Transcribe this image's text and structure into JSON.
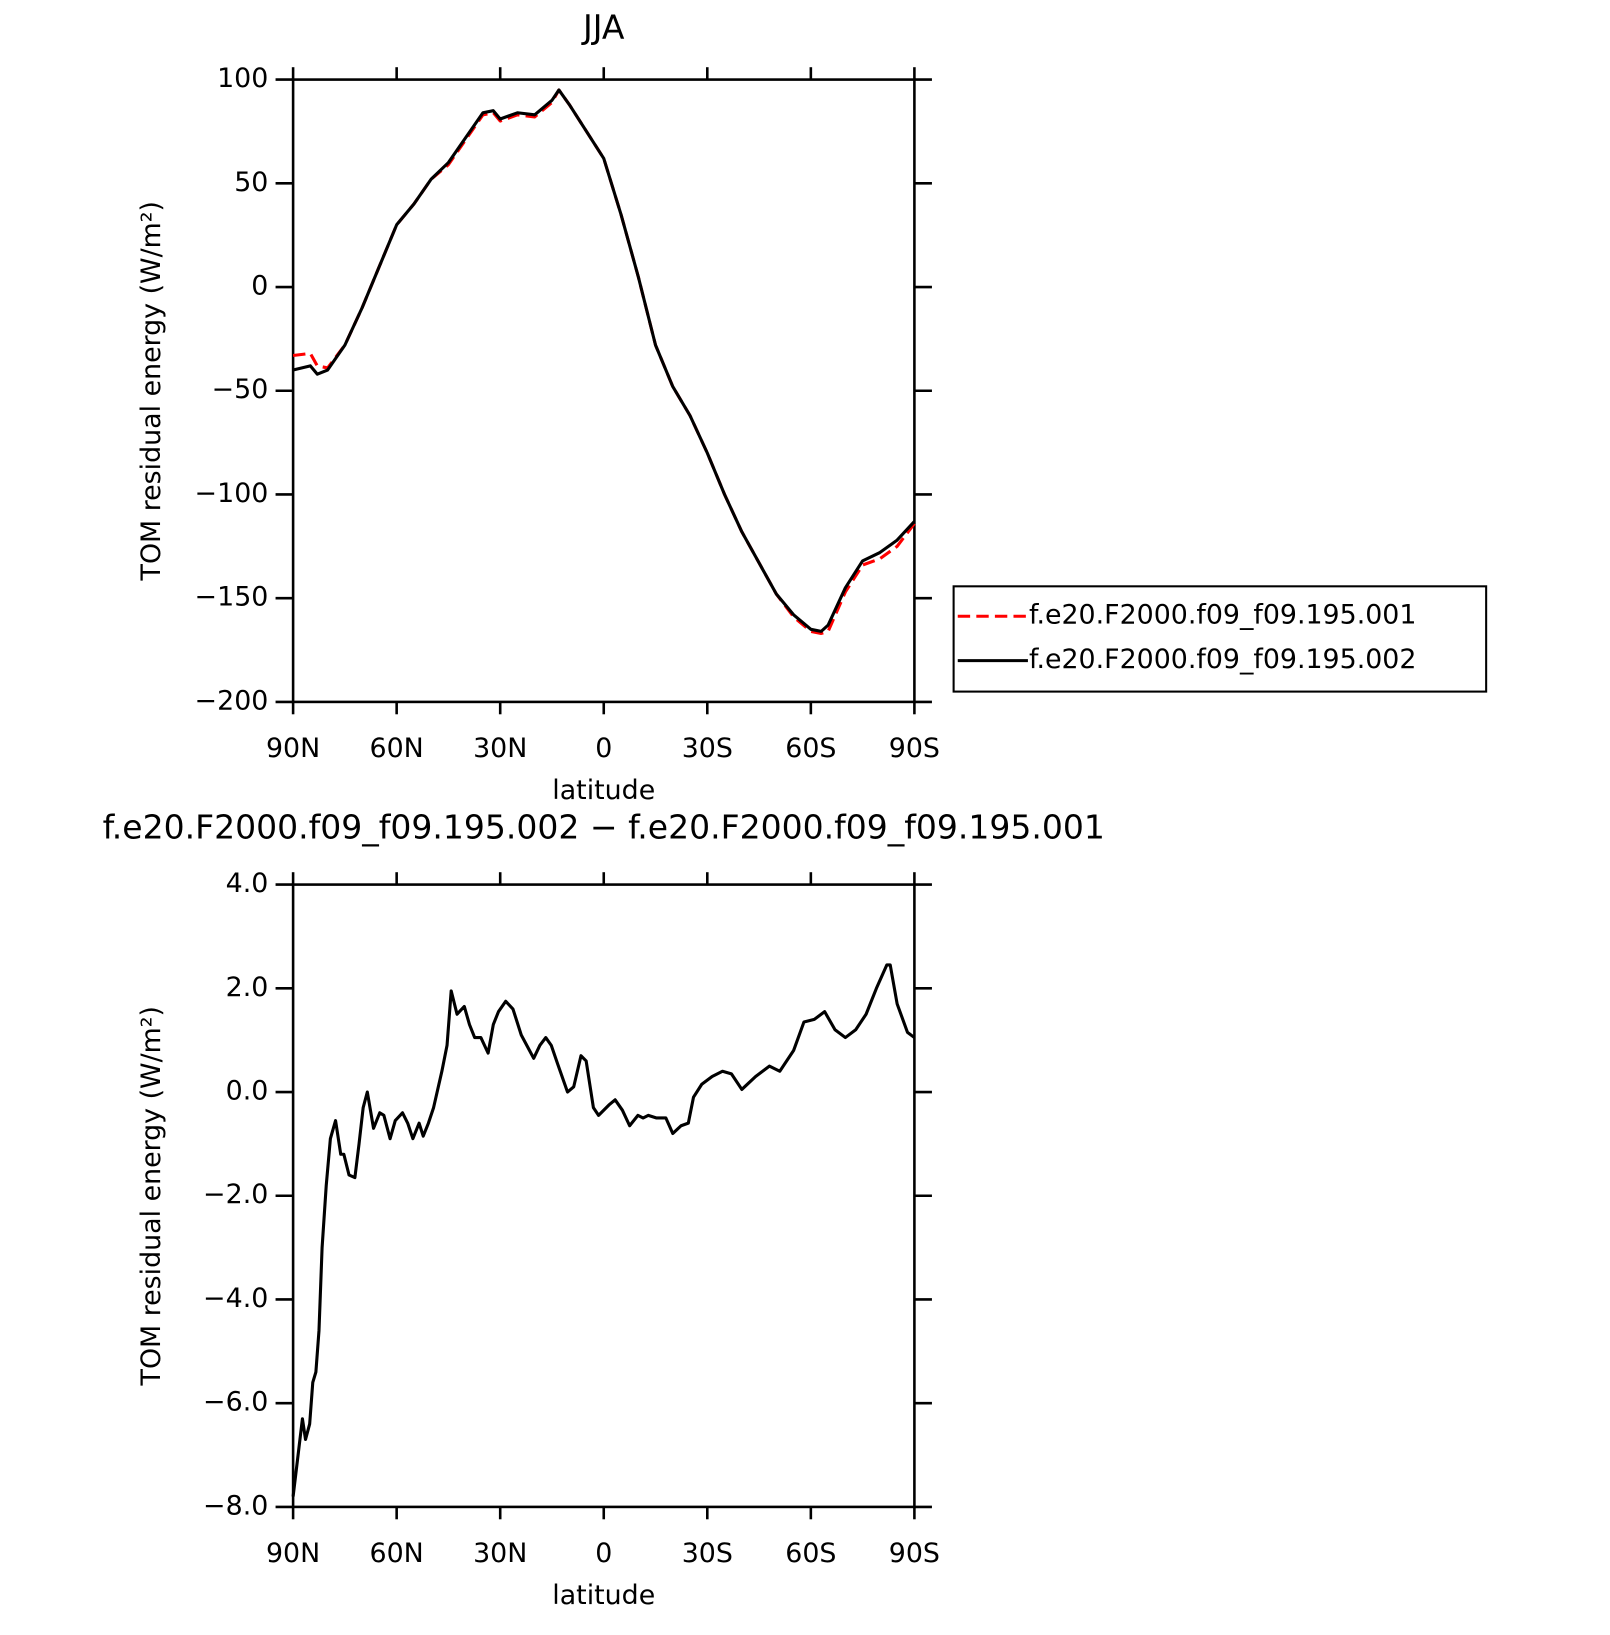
{
  "chart_data": [
    {
      "type": "line",
      "title": "JJA",
      "xlabel": "latitude",
      "ylabel": "TOM residual energy (W/m²)",
      "x": [
        90,
        85,
        83,
        80,
        75,
        70,
        65,
        60,
        55,
        50,
        45,
        40,
        35,
        32,
        30,
        25,
        20,
        15,
        13,
        10,
        5,
        0,
        -5,
        -10,
        -15,
        -20,
        -25,
        -30,
        -35,
        -40,
        -45,
        -50,
        -55,
        -60,
        -63,
        -65,
        -70,
        -75,
        -80,
        -85,
        -90
      ],
      "series": [
        {
          "name": "f.e20.F2000.f09_f09.195.001",
          "color": "#ff0000",
          "linestyle": "dashed",
          "values": [
            -33,
            -32,
            -38,
            -39,
            -28,
            -10,
            10,
            30,
            40,
            52,
            59,
            71,
            83,
            84,
            80,
            83,
            82,
            89,
            95,
            88,
            75,
            62,
            35,
            5,
            -28,
            -48,
            -62,
            -80,
            -100,
            -118,
            -133,
            -148,
            -159,
            -166,
            -167,
            -166,
            -147,
            -134,
            -131,
            -125,
            -114
          ]
        },
        {
          "name": "f.e20.F2000.f09_f09.195.002",
          "color": "#000000",
          "linestyle": "solid",
          "values": [
            -40,
            -38,
            -42,
            -40,
            -28,
            -10,
            10,
            30,
            40,
            52,
            60,
            72,
            84,
            85,
            81,
            84,
            83,
            90,
            95,
            88,
            75,
            62,
            35,
            5,
            -28,
            -48,
            -62,
            -80,
            -100,
            -118,
            -133,
            -148,
            -158,
            -165,
            -166,
            -163,
            -145,
            -132,
            -128,
            -122,
            -113
          ]
        }
      ],
      "xlim": [
        90,
        -90
      ],
      "xticks": [
        {
          "value": 90,
          "label": "90N"
        },
        {
          "value": 60,
          "label": "60N"
        },
        {
          "value": 30,
          "label": "30N"
        },
        0,
        {
          "value": -30,
          "label": "30S"
        },
        {
          "value": -60,
          "label": "60S"
        },
        {
          "value": -90,
          "label": "90S"
        }
      ],
      "ylim": [
        -200,
        100
      ],
      "yticks": [
        100,
        50,
        0,
        {
          "value": -50,
          "label": "−50"
        },
        {
          "value": -100,
          "label": "−100"
        },
        {
          "value": -150,
          "label": "−150"
        },
        {
          "value": -200,
          "label": "−200"
        }
      ],
      "legend": "right"
    },
    {
      "type": "line",
      "title": "f.e20.F2000.f09_f09.195.002 − f.e20.F2000.f09_f09.195.001",
      "xlabel": "latitude",
      "ylabel": "TOM residual energy (W/m²)",
      "x": [
        90,
        88.2,
        87.3,
        86.4,
        85.2,
        84.3,
        83.4,
        82.5,
        81.6,
        80.4,
        79.2,
        77.7,
        76.2,
        75.3,
        73.8,
        72.1,
        70.9,
        69.7,
        68.5,
        66.7,
        64.9,
        63.7,
        61.9,
        60.4,
        58.3,
        56.8,
        55.3,
        53.5,
        52.3,
        50.8,
        49.3,
        46.9,
        45.4,
        44.2,
        42.5,
        40.4,
        38.9,
        37.4,
        35.6,
        33.5,
        32,
        30.5,
        28.4,
        26.3,
        23.9,
        21.5,
        20.3,
        18.5,
        16.8,
        15.2,
        13.4,
        10.5,
        8.7,
        6.6,
        5.1,
        3,
        1.5,
        -1.5,
        -3.3,
        -5.4,
        -7.5,
        -9.9,
        -11.4,
        -12.9,
        -15.3,
        -18,
        -20,
        -22.4,
        -24.5,
        -26,
        -28.4,
        -31.4,
        -34.4,
        -37,
        -40,
        -44,
        -48,
        -51,
        -55,
        -58,
        -61,
        -64,
        -67,
        -70,
        -73,
        -76,
        -79,
        -82,
        -83,
        -85,
        -88,
        -90
      ],
      "values": [
        -7.8,
        -6.8,
        -6.3,
        -6.7,
        -6.4,
        -5.6,
        -5.4,
        -4.6,
        -3,
        -1.8,
        -0.9,
        -0.55,
        -1.2,
        -1.2,
        -1.6,
        -1.65,
        -1,
        -0.3,
        0,
        -0.7,
        -0.4,
        -0.45,
        -0.9,
        -0.55,
        -0.4,
        -0.6,
        -0.9,
        -0.6,
        -0.85,
        -0.6,
        -0.3,
        0.4,
        0.9,
        1.95,
        1.5,
        1.65,
        1.3,
        1.05,
        1.05,
        0.75,
        1.3,
        1.55,
        1.75,
        1.6,
        1.1,
        0.8,
        0.65,
        0.9,
        1.05,
        0.9,
        0.55,
        0,
        0.1,
        0.7,
        0.6,
        -0.3,
        -0.45,
        -0.25,
        -0.15,
        -0.35,
        -0.65,
        -0.45,
        -0.5,
        -0.45,
        -0.5,
        -0.5,
        -0.8,
        -0.65,
        -0.6,
        -0.1,
        0.15,
        0.3,
        0.4,
        0.35,
        0.05,
        0.3,
        0.5,
        0.4,
        0.8,
        1.35,
        1.4,
        1.55,
        1.2,
        1.05,
        1.2,
        1.5,
        2,
        2.45,
        2.45,
        1.7,
        1.15,
        1.05
      ],
      "color": "#000000",
      "xlim": [
        90,
        -90
      ],
      "xticks": [
        {
          "value": 90,
          "label": "90N"
        },
        {
          "value": 60,
          "label": "60N"
        },
        {
          "value": 30,
          "label": "30N"
        },
        0,
        {
          "value": -30,
          "label": "30S"
        },
        {
          "value": -60,
          "label": "60S"
        },
        {
          "value": -90,
          "label": "90S"
        }
      ],
      "ylim": [
        -8,
        4
      ],
      "yticks": [
        {
          "value": 4,
          "label": "4.0"
        },
        {
          "value": 2,
          "label": "2.0"
        },
        {
          "value": 0,
          "label": "0.0"
        },
        {
          "value": -2,
          "label": "−2.0"
        },
        {
          "value": -4,
          "label": "−4.0"
        },
        {
          "value": -6,
          "label": "−6.0"
        },
        {
          "value": -8,
          "label": "−8.0"
        }
      ]
    }
  ]
}
